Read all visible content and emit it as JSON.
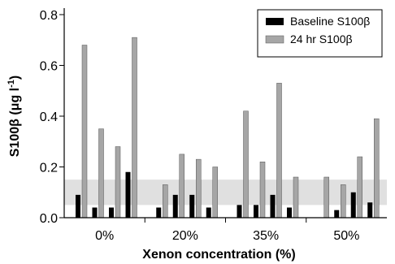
{
  "chart_data": {
    "type": "bar",
    "xlabel": "Xenon concentration (%)",
    "ylabel": "S100β (μg l⁻¹)",
    "ylabel_main": "S100β (μg l",
    "ylabel_sup": "-1",
    "ylabel_close": ")",
    "ylim": [
      0,
      0.8
    ],
    "yticks": [
      "0.0",
      "0.2",
      "0.4",
      "0.6",
      "0.8"
    ],
    "grid": false,
    "legend_position": "top-right",
    "reference_band": {
      "y0": 0.05,
      "y1": 0.15,
      "color": "#e0e0e0"
    },
    "groups": [
      {
        "label": "0%",
        "baseline": [
          0.09,
          0.04,
          0.04,
          0.18
        ],
        "hr24": [
          0.68,
          0.35,
          0.28,
          0.71
        ]
      },
      {
        "label": "20%",
        "baseline": [
          0.04,
          0.09,
          0.09,
          0.04
        ],
        "hr24": [
          0.13,
          0.25,
          0.23,
          0.2
        ]
      },
      {
        "label": "35%",
        "baseline": [
          0.05,
          0.05,
          0.09,
          0.04
        ],
        "hr24": [
          0.42,
          0.22,
          0.53,
          0.16
        ]
      },
      {
        "label": "50%",
        "baseline": [
          0.0,
          0.03,
          0.1,
          0.06
        ],
        "hr24": [
          0.16,
          0.13,
          0.24,
          0.39
        ]
      }
    ],
    "series": [
      {
        "name": "Baseline S100β",
        "key": "baseline",
        "color": "#000000"
      },
      {
        "name": "24 hr S100β",
        "key": "hr24",
        "color": "#a6a6a6"
      }
    ]
  }
}
